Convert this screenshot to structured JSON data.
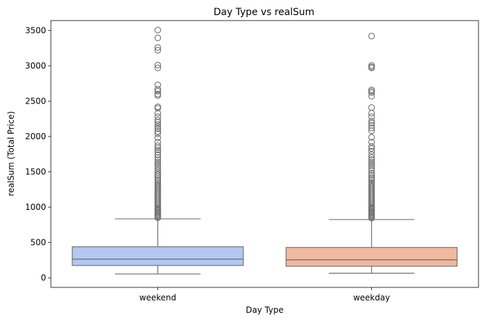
{
  "chart_data": {
    "type": "box",
    "title": "Day Type vs realSum",
    "xlabel": "Day Type",
    "ylabel": "realSum (Total Price)",
    "categories": [
      "weekend",
      "weekday"
    ],
    "ylim": [
      -135,
      3640
    ],
    "yticks": [
      0,
      500,
      1000,
      1500,
      2000,
      2500,
      3000,
      3500
    ],
    "grid": false,
    "colors": {
      "weekend": "#b3c8f2",
      "weekday": "#f0b9a0",
      "edge": "#707070"
    },
    "boxes": [
      {
        "category": "weekend",
        "whislo": 55,
        "q1": 175,
        "med": 265,
        "q3": 440,
        "whishi": 835,
        "fliers": [
          3505,
          3395,
          3260,
          3220,
          3010,
          2970,
          2730,
          2670,
          2640,
          2600,
          2580,
          2420,
          2400,
          2330,
          2280,
          2230,
          2200,
          2170,
          2140,
          2110,
          2070,
          2040,
          1980,
          1920,
          1870,
          1840,
          1810,
          1780,
          1740,
          1700,
          1670,
          1640,
          1610,
          1580,
          1550,
          1520,
          1490,
          1460,
          1440,
          1415,
          1390,
          1365,
          1340,
          1320,
          1300,
          1280,
          1260,
          1240,
          1220,
          1200,
          1180,
          1160,
          1140,
          1120,
          1100,
          1080,
          1060,
          1040,
          1020,
          1000,
          985,
          970,
          955,
          940,
          925,
          910,
          895,
          880,
          865,
          850
        ]
      },
      {
        "category": "weekday",
        "whislo": 65,
        "q1": 165,
        "med": 255,
        "q3": 430,
        "whishi": 825,
        "fliers": [
          3420,
          3005,
          2985,
          2970,
          2660,
          2640,
          2620,
          2570,
          2410,
          2330,
          2280,
          2220,
          2190,
          2160,
          2120,
          2080,
          1990,
          1920,
          1860,
          1830,
          1790,
          1740,
          1700,
          1670,
          1640,
          1610,
          1580,
          1550,
          1520,
          1480,
          1450,
          1420,
          1400,
          1380,
          1350,
          1330,
          1310,
          1290,
          1270,
          1250,
          1230,
          1210,
          1190,
          1170,
          1150,
          1130,
          1110,
          1090,
          1070,
          1050,
          1030,
          1010,
          995,
          980,
          965,
          950,
          935,
          920,
          905,
          890,
          875,
          860,
          845
        ]
      }
    ]
  }
}
